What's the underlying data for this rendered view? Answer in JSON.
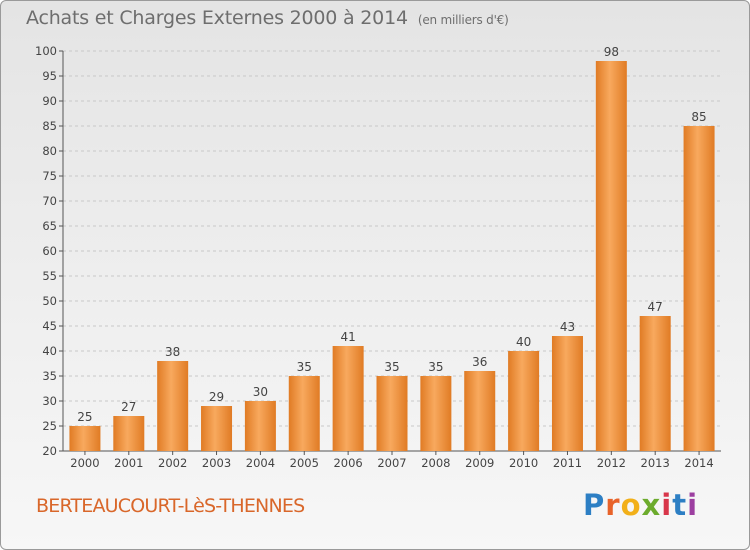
{
  "header": {
    "title": "Achats et Charges Externes 2000 à 2014",
    "unit": "(en milliers d'€)"
  },
  "footer": {
    "commune": "BERTEAUCOURT-LèS-THENNES",
    "logo": [
      "P",
      "r",
      "o",
      "x",
      "i",
      "t",
      "i"
    ]
  },
  "colors": {
    "bar_light": "#f6a659",
    "bar_dark": "#e07b24",
    "grid": "#c8c8c8",
    "commune": "#d9672a"
  },
  "chart_data": {
    "type": "bar",
    "title": "Achats et Charges Externes 2000 à 2014",
    "subtitle": "(en milliers d'€)",
    "categories": [
      "2000",
      "2001",
      "2002",
      "2003",
      "2004",
      "2005",
      "2006",
      "2007",
      "2008",
      "2009",
      "2010",
      "2011",
      "2012",
      "2013",
      "2014"
    ],
    "values": [
      25,
      27,
      38,
      29,
      30,
      35,
      41,
      35,
      35,
      36,
      40,
      43,
      98,
      47,
      85
    ],
    "ylim": [
      20,
      100
    ],
    "yticks": [
      20,
      25,
      30,
      35,
      40,
      45,
      50,
      55,
      60,
      65,
      70,
      75,
      80,
      85,
      90,
      95,
      100
    ],
    "grid": "horizontal dashed",
    "legend": "none"
  }
}
